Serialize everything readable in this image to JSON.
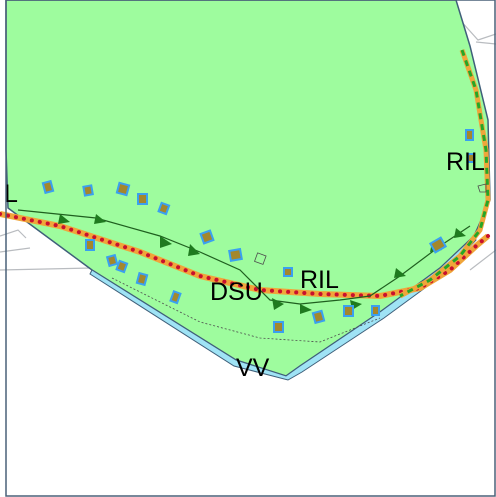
{
  "map": {
    "labels": {
      "left_edge": "L",
      "ril_right": "RIL",
      "dsu": "DSU",
      "ril_center": "RIL",
      "vv": "VV"
    },
    "colors": {
      "zone_fill": "#9efc9e",
      "zone_border": "#3f5f7a",
      "river": "#9fe3f5",
      "road_orange": "#f0a53a",
      "road_dots": "#c8102e",
      "green_dashes": "#26a626",
      "tree_triangles": "#1f7a1f",
      "building_fill": "#a4872c",
      "building_outline": "#3aa0f0",
      "frame": "#4a6178"
    },
    "icons": [
      "tree-marker-icon",
      "building-icon"
    ]
  }
}
